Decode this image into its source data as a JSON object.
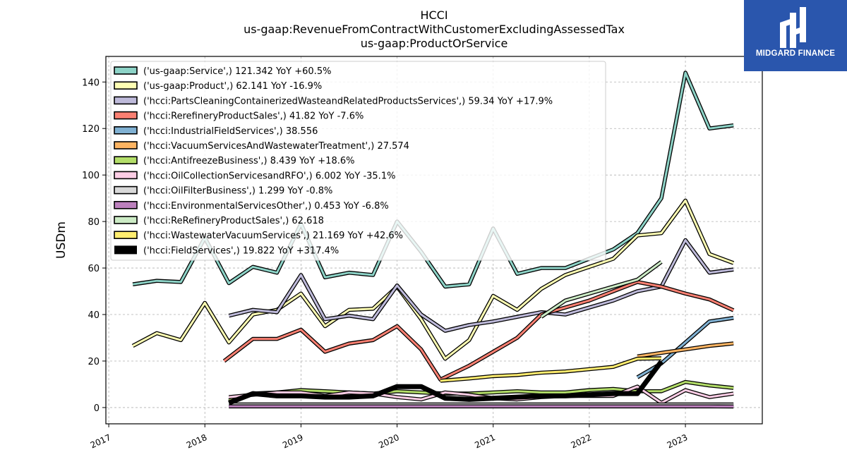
{
  "chart_data": {
    "type": "line",
    "title_lines": [
      "HCCI",
      "us-gaap:RevenueFromContractWithCustomerExcludingAssessedTax",
      "us-gaap:ProductOrService"
    ],
    "ylabel": "USDm",
    "xlabel": "",
    "ylim": [
      -7,
      151
    ],
    "xlim": [
      2016.97,
      2023.8
    ],
    "yticks": [
      0,
      20,
      40,
      60,
      80,
      100,
      120,
      140
    ],
    "xticks": [
      2017,
      2018,
      2019,
      2020,
      2021,
      2022,
      2023
    ],
    "grid": true,
    "legend_position": "top-left",
    "series": [
      {
        "name": "('us-gaap:Service',) 121.342 YoY +60.5%",
        "color": "#8dd3c7",
        "lw": 3,
        "points": [
          [
            2017.25,
            53
          ],
          [
            2017.5,
            54.5
          ],
          [
            2017.75,
            54
          ],
          [
            2018.0,
            73
          ],
          [
            2018.25,
            53.5
          ],
          [
            2018.5,
            60.5
          ],
          [
            2018.75,
            58
          ],
          [
            2019.0,
            79
          ],
          [
            2019.25,
            56
          ],
          [
            2019.5,
            58
          ],
          [
            2019.75,
            57
          ],
          [
            2020.0,
            80
          ],
          [
            2020.25,
            67
          ],
          [
            2020.5,
            52
          ],
          [
            2020.75,
            53
          ],
          [
            2021.0,
            77
          ],
          [
            2021.25,
            57.5
          ],
          [
            2021.5,
            60
          ],
          [
            2021.75,
            60
          ],
          [
            2022.0,
            64
          ],
          [
            2022.25,
            68
          ],
          [
            2022.5,
            75
          ],
          [
            2022.75,
            90
          ],
          [
            2023.0,
            144
          ],
          [
            2023.25,
            120
          ],
          [
            2023.5,
            121.342
          ]
        ]
      },
      {
        "name": "('us-gaap:Product',) 62.141 YoY -16.9%",
        "color": "#ffffb3",
        "lw": 3,
        "points": [
          [
            2017.25,
            26.5
          ],
          [
            2017.5,
            32
          ],
          [
            2017.75,
            29
          ],
          [
            2018.0,
            45
          ],
          [
            2018.25,
            28
          ],
          [
            2018.5,
            40
          ],
          [
            2018.75,
            42
          ],
          [
            2019.0,
            49
          ],
          [
            2019.25,
            35
          ],
          [
            2019.5,
            42
          ],
          [
            2019.75,
            42.5
          ],
          [
            2020.0,
            52
          ],
          [
            2020.25,
            38
          ],
          [
            2020.5,
            21
          ],
          [
            2020.75,
            29
          ],
          [
            2021.0,
            48
          ],
          [
            2021.25,
            42
          ],
          [
            2021.5,
            51
          ],
          [
            2021.75,
            57
          ],
          [
            2022.0,
            60.5
          ],
          [
            2022.25,
            64
          ],
          [
            2022.5,
            74
          ],
          [
            2022.75,
            75
          ],
          [
            2023.0,
            89
          ],
          [
            2023.25,
            66
          ],
          [
            2023.5,
            62.141
          ]
        ]
      },
      {
        "name": "('hcci:PartsCleaningContainerizedWasteandRelatedProductsServices',) 59.34 YoY +17.9%",
        "color": "#bebada",
        "lw": 3,
        "points": [
          [
            2018.25,
            39.5
          ],
          [
            2018.5,
            42
          ],
          [
            2018.75,
            41
          ],
          [
            2019.0,
            57
          ],
          [
            2019.25,
            38
          ],
          [
            2019.5,
            39.5
          ],
          [
            2019.75,
            38
          ],
          [
            2020.0,
            52.5
          ],
          [
            2020.25,
            40
          ],
          [
            2020.5,
            33
          ],
          [
            2020.75,
            35.5
          ],
          [
            2021.0,
            37
          ],
          [
            2021.25,
            39
          ],
          [
            2021.5,
            41
          ],
          [
            2021.75,
            40
          ],
          [
            2022.0,
            43
          ],
          [
            2022.25,
            46
          ],
          [
            2022.5,
            50
          ],
          [
            2022.75,
            52
          ],
          [
            2023.0,
            72
          ],
          [
            2023.25,
            58
          ],
          [
            2023.5,
            59.34
          ]
        ]
      },
      {
        "name": "('hcci:RerefineryProductSales',) 41.82 YoY -7.6%",
        "color": "#fb8072",
        "lw": 3,
        "points": [
          [
            2018.2,
            20
          ],
          [
            2018.5,
            29.5
          ],
          [
            2018.75,
            29.5
          ],
          [
            2019.0,
            33.5
          ],
          [
            2019.25,
            24
          ],
          [
            2019.5,
            27.5
          ],
          [
            2019.75,
            29
          ],
          [
            2020.0,
            35
          ],
          [
            2020.25,
            25
          ],
          [
            2020.45,
            12
          ],
          [
            2020.75,
            18
          ],
          [
            2021.0,
            24
          ],
          [
            2021.25,
            30
          ],
          [
            2021.5,
            40
          ],
          [
            2021.75,
            43
          ],
          [
            2022.0,
            46
          ],
          [
            2022.25,
            50
          ],
          [
            2022.5,
            54
          ],
          [
            2022.75,
            52
          ],
          [
            2023.0,
            49
          ],
          [
            2023.25,
            46.5
          ],
          [
            2023.5,
            41.82
          ]
        ]
      },
      {
        "name": "('hcci:IndustrialFieldServices',) 38.556",
        "color": "#80b1d3",
        "lw": 3,
        "points": [
          [
            2022.5,
            13
          ],
          [
            2022.75,
            19
          ],
          [
            2023.0,
            28
          ],
          [
            2023.25,
            37
          ],
          [
            2023.5,
            38.556
          ]
        ]
      },
      {
        "name": "('hcci:VacuumServicesAndWastewaterTreatment',) 27.574",
        "color": "#fdb462",
        "lw": 3,
        "points": [
          [
            2022.5,
            22
          ],
          [
            2022.75,
            23.5
          ],
          [
            2023.0,
            25
          ],
          [
            2023.25,
            26.5
          ],
          [
            2023.5,
            27.574
          ]
        ]
      },
      {
        "name": "('hcci:AntifreezeBusiness',) 8.439 YoY +18.6%",
        "color": "#b3de69",
        "lw": 3,
        "points": [
          [
            2018.25,
            3
          ],
          [
            2018.5,
            6
          ],
          [
            2018.75,
            6.5
          ],
          [
            2019.0,
            7.5
          ],
          [
            2019.25,
            7
          ],
          [
            2019.5,
            6.5
          ],
          [
            2019.75,
            6
          ],
          [
            2020.0,
            7
          ],
          [
            2020.25,
            6.5
          ],
          [
            2020.5,
            6
          ],
          [
            2020.75,
            6
          ],
          [
            2021.0,
            6.5
          ],
          [
            2021.25,
            7
          ],
          [
            2021.5,
            6.5
          ],
          [
            2021.75,
            6.5
          ],
          [
            2022.0,
            7.5
          ],
          [
            2022.25,
            8
          ],
          [
            2022.5,
            7
          ],
          [
            2022.75,
            7
          ],
          [
            2023.0,
            11
          ],
          [
            2023.25,
            9.5
          ],
          [
            2023.5,
            8.439
          ]
        ]
      },
      {
        "name": "('hcci:OilCollectionServicesandRFO',) 6.002 YoY -35.1%",
        "color": "#fccde5",
        "lw": 3,
        "points": [
          [
            2018.25,
            4.5
          ],
          [
            2018.5,
            5.5
          ],
          [
            2018.75,
            6.5
          ],
          [
            2019.0,
            6.5
          ],
          [
            2019.25,
            5
          ],
          [
            2019.5,
            6.5
          ],
          [
            2019.75,
            6
          ],
          [
            2020.0,
            4.5
          ],
          [
            2020.25,
            3.5
          ],
          [
            2020.5,
            6.5
          ],
          [
            2020.75,
            5.5
          ],
          [
            2021.0,
            4
          ],
          [
            2021.25,
            3.5
          ],
          [
            2021.5,
            4.5
          ],
          [
            2021.75,
            5
          ],
          [
            2022.0,
            5
          ],
          [
            2022.25,
            5
          ],
          [
            2022.5,
            9
          ],
          [
            2022.75,
            2
          ],
          [
            2023.0,
            7.5
          ],
          [
            2023.25,
            4.5
          ],
          [
            2023.5,
            6.002
          ]
        ]
      },
      {
        "name": "('hcci:OilFilterBusiness',) 1.299 YoY -0.8%",
        "color": "#d9d9d9",
        "lw": 3,
        "points": [
          [
            2018.25,
            1.3
          ],
          [
            2018.5,
            1.3
          ],
          [
            2018.75,
            1.3
          ],
          [
            2019.0,
            1.3
          ],
          [
            2019.25,
            1.3
          ],
          [
            2019.5,
            1.3
          ],
          [
            2019.75,
            1.3
          ],
          [
            2020.0,
            1.3
          ],
          [
            2020.25,
            1.3
          ],
          [
            2020.5,
            1.3
          ],
          [
            2020.75,
            1.3
          ],
          [
            2021.0,
            1.3
          ],
          [
            2021.25,
            1.3
          ],
          [
            2021.5,
            1.3
          ],
          [
            2021.75,
            1.3
          ],
          [
            2022.0,
            1.3
          ],
          [
            2022.25,
            1.3
          ],
          [
            2022.5,
            1.3
          ],
          [
            2022.75,
            1.3
          ],
          [
            2023.0,
            1.3
          ],
          [
            2023.25,
            1.3
          ],
          [
            2023.5,
            1.299
          ]
        ]
      },
      {
        "name": "('hcci:EnvironmentalServicesOther',) 0.453 YoY -6.8%",
        "color": "#bc80bd",
        "lw": 3,
        "points": [
          [
            2018.25,
            0.5
          ],
          [
            2018.5,
            0.5
          ],
          [
            2018.75,
            0.5
          ],
          [
            2019.0,
            0.5
          ],
          [
            2019.25,
            0.5
          ],
          [
            2019.5,
            0.5
          ],
          [
            2019.75,
            0.5
          ],
          [
            2020.0,
            0.5
          ],
          [
            2020.25,
            0.5
          ],
          [
            2020.5,
            0.5
          ],
          [
            2020.75,
            0.5
          ],
          [
            2021.0,
            0.5
          ],
          [
            2021.25,
            0.5
          ],
          [
            2021.5,
            0.5
          ],
          [
            2021.75,
            0.5
          ],
          [
            2022.0,
            0.5
          ],
          [
            2022.25,
            0.5
          ],
          [
            2022.5,
            0.5
          ],
          [
            2022.75,
            0.5
          ],
          [
            2023.0,
            0.5
          ],
          [
            2023.25,
            0.5
          ],
          [
            2023.5,
            0.453
          ]
        ]
      },
      {
        "name": "('hcci:ReRefineryProductSales',) 62.618",
        "color": "#ccebc5",
        "lw": 3,
        "points": [
          [
            2021.5,
            39
          ],
          [
            2021.75,
            46
          ],
          [
            2022.0,
            49
          ],
          [
            2022.25,
            52
          ],
          [
            2022.5,
            55
          ],
          [
            2022.75,
            62.618
          ]
        ]
      },
      {
        "name": "('hcci:WastewaterVacuumServices',) 21.169 YoY +42.6%",
        "color": "#ffed6f",
        "lw": 3,
        "points": [
          [
            2020.45,
            11.5
          ],
          [
            2020.75,
            12.5
          ],
          [
            2021.0,
            13.5
          ],
          [
            2021.25,
            14
          ],
          [
            2021.5,
            15
          ],
          [
            2021.75,
            15.5
          ],
          [
            2022.0,
            16.5
          ],
          [
            2022.25,
            17.5
          ],
          [
            2022.5,
            21
          ],
          [
            2022.75,
            21.169
          ]
        ]
      },
      {
        "name": "('hcci:FieldServices',) 19.822 YoY +317.4%",
        "color": "#000000",
        "lw": 7,
        "points": [
          [
            2018.25,
            2
          ],
          [
            2018.5,
            6
          ],
          [
            2018.75,
            5
          ],
          [
            2019.0,
            5
          ],
          [
            2019.25,
            4.5
          ],
          [
            2019.5,
            4.5
          ],
          [
            2019.75,
            5
          ],
          [
            2020.0,
            9
          ],
          [
            2020.25,
            9
          ],
          [
            2020.5,
            4
          ],
          [
            2020.75,
            3.5
          ],
          [
            2021.0,
            4
          ],
          [
            2021.25,
            4.5
          ],
          [
            2021.5,
            5
          ],
          [
            2021.75,
            5
          ],
          [
            2022.0,
            5.5
          ],
          [
            2022.25,
            6
          ],
          [
            2022.5,
            6
          ],
          [
            2022.75,
            19.822
          ]
        ]
      }
    ]
  },
  "logo": {
    "text": "MIDGARD FINANCE"
  }
}
